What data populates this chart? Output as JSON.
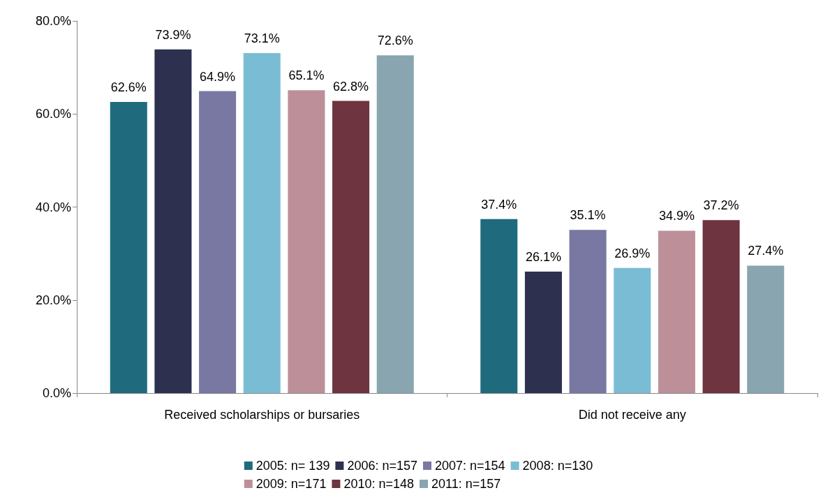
{
  "chart_data": {
    "type": "bar",
    "categories": [
      "Received scholarships or bursaries",
      "Did not receive any"
    ],
    "series": [
      {
        "name": "2005: n= 139",
        "color": "#1f6b7d",
        "values": [
          62.6,
          37.4
        ],
        "value_labels": [
          "62.6%",
          "37.4%"
        ]
      },
      {
        "name": "2006: n=157",
        "color": "#2e3050",
        "values": [
          73.9,
          26.1
        ],
        "value_labels": [
          "73.9%",
          "26.1%"
        ]
      },
      {
        "name": "2007: n=154",
        "color": "#7878a3",
        "values": [
          64.9,
          35.1
        ],
        "value_labels": [
          "64.9%",
          "35.1%"
        ]
      },
      {
        "name": "2008: n=130",
        "color": "#7bbcd5",
        "values": [
          73.1,
          26.9
        ],
        "value_labels": [
          "73.1%",
          "26.9%"
        ]
      },
      {
        "name": "2009: n=171",
        "color": "#bd9099",
        "values": [
          65.1,
          34.9
        ],
        "value_labels": [
          "65.1%",
          "34.9%"
        ]
      },
      {
        "name": "2010: n=148",
        "color": "#6e3440",
        "values": [
          62.8,
          37.2
        ],
        "value_labels": [
          "62.8%",
          "37.2%"
        ]
      },
      {
        "name": "2011: n=157",
        "color": "#88a5b0",
        "values": [
          72.6,
          27.4
        ],
        "value_labels": [
          "72.6%",
          "27.4%"
        ]
      }
    ],
    "ylim": [
      0,
      80
    ],
    "yticks": [
      {
        "value": 0,
        "label": "0.0%"
      },
      {
        "value": 20,
        "label": "20.0%"
      },
      {
        "value": 40,
        "label": "40.0%"
      },
      {
        "value": 60,
        "label": "60.0%"
      },
      {
        "value": 80,
        "label": "80.0%"
      }
    ],
    "grid": false,
    "legend": "bottom"
  }
}
